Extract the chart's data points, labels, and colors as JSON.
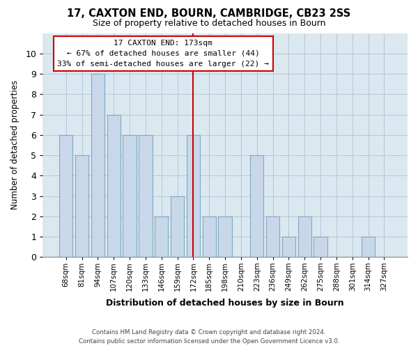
{
  "title1": "17, CAXTON END, BOURN, CAMBRIDGE, CB23 2SS",
  "title2": "Size of property relative to detached houses in Bourn",
  "xlabel": "Distribution of detached houses by size in Bourn",
  "ylabel": "Number of detached properties",
  "bin_labels": [
    "68sqm",
    "81sqm",
    "94sqm",
    "107sqm",
    "120sqm",
    "133sqm",
    "146sqm",
    "159sqm",
    "172sqm",
    "185sqm",
    "198sqm",
    "210sqm",
    "223sqm",
    "236sqm",
    "249sqm",
    "262sqm",
    "275sqm",
    "288sqm",
    "301sqm",
    "314sqm",
    "327sqm"
  ],
  "bar_heights": [
    6,
    5,
    9,
    7,
    6,
    6,
    2,
    3,
    6,
    2,
    2,
    0,
    5,
    2,
    1,
    2,
    1,
    0,
    0,
    1,
    0
  ],
  "bar_color": "#c8d8ea",
  "bar_edge_color": "#7fa8c0",
  "plot_bg_color": "#dce8f0",
  "highlight_line_index": 8,
  "highlight_line_color": "#cc0000",
  "annotation_title": "17 CAXTON END: 173sqm",
  "annotation_line1": "← 67% of detached houses are smaller (44)",
  "annotation_line2": "33% of semi-detached houses are larger (22) →",
  "annotation_box_color": "#ffffff",
  "annotation_box_edge": "#cc0000",
  "ylim": [
    0,
    11
  ],
  "yticks": [
    0,
    1,
    2,
    3,
    4,
    5,
    6,
    7,
    8,
    9,
    10,
    11
  ],
  "footer1": "Contains HM Land Registry data © Crown copyright and database right 2024.",
  "footer2": "Contains public sector information licensed under the Open Government Licence v3.0."
}
